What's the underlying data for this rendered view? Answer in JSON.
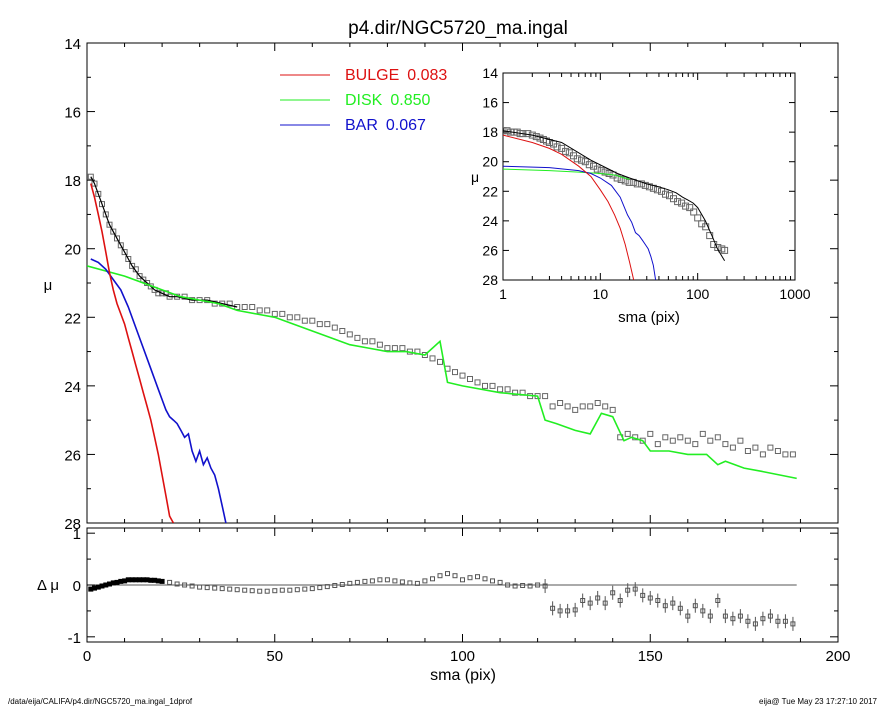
{
  "title": "p4.dir/NGC5720_ma.ingal",
  "footer": {
    "left": "/data/eija/CALIFA/p4.dir/NGC5720_ma.ingal_1dprof",
    "right": "eija@  Tue May 23 17:27:10 2017"
  },
  "colors": {
    "bulge": "#dd1111",
    "disk": "#22ee22",
    "bar": "#1111cc",
    "data": "#666666",
    "model": "#000000"
  },
  "chart_data": [
    {
      "type": "line",
      "panel": "main",
      "xlabel": "sma (pix)",
      "ylabel": "μ",
      "xlim": [
        0,
        200
      ],
      "ylim": [
        28,
        14
      ],
      "yticks": [
        "14",
        "16",
        "18",
        "20",
        "22",
        "24",
        "26",
        "28"
      ],
      "legend": [
        {
          "name": "BULGE",
          "value": "0.083",
          "color": "#dd1111"
        },
        {
          "name": "DISK",
          "value": "0.850",
          "color": "#22ee22"
        },
        {
          "name": "BAR",
          "value": "0.067",
          "color": "#1111cc"
        }
      ],
      "series": [
        {
          "name": "BULGE",
          "color": "#dd1111",
          "x": [
            1,
            2,
            3,
            4,
            5,
            6,
            7,
            8,
            9,
            10,
            11,
            12,
            13,
            14,
            15,
            16,
            17,
            18,
            19,
            20,
            21,
            22,
            23
          ],
          "y": [
            18.1,
            18.5,
            19.0,
            19.5,
            20.1,
            20.7,
            21.2,
            21.6,
            21.9,
            22.2,
            22.6,
            23.0,
            23.4,
            23.8,
            24.2,
            24.6,
            25.0,
            25.5,
            26.0,
            26.6,
            27.2,
            27.8,
            28.0
          ]
        },
        {
          "name": "DISK",
          "color": "#22ee22",
          "x": [
            0,
            10,
            20,
            25,
            30,
            35,
            40,
            45,
            50,
            55,
            60,
            65,
            70,
            75,
            80,
            85,
            90,
            94,
            96,
            100,
            110,
            120,
            122,
            125,
            130,
            134,
            137,
            140,
            143,
            145,
            148,
            150,
            155,
            160,
            165,
            168,
            170,
            175,
            180,
            189
          ],
          "y": [
            20.5,
            20.8,
            21.2,
            21.4,
            21.5,
            21.6,
            21.8,
            21.9,
            22.0,
            22.2,
            22.4,
            22.6,
            22.8,
            22.9,
            23.0,
            23.0,
            23.1,
            22.7,
            23.9,
            24.0,
            24.2,
            24.3,
            25.0,
            25.1,
            25.3,
            25.4,
            24.8,
            24.9,
            25.6,
            25.5,
            25.6,
            25.9,
            25.9,
            26.0,
            26.0,
            26.3,
            26.2,
            26.4,
            26.5,
            26.7
          ]
        },
        {
          "name": "BAR",
          "color": "#1111cc",
          "x": [
            1,
            3,
            5,
            7,
            9,
            11,
            13,
            15,
            17,
            19,
            20,
            21,
            22,
            23,
            24,
            25,
            26,
            27,
            28,
            29,
            30,
            31,
            32,
            33,
            34,
            35,
            36,
            37
          ],
          "y": [
            20.3,
            20.4,
            20.6,
            20.9,
            21.2,
            21.7,
            22.3,
            22.9,
            23.5,
            24.1,
            24.4,
            24.7,
            24.9,
            25.0,
            25.1,
            25.3,
            25.5,
            25.4,
            25.9,
            26.2,
            25.9,
            26.3,
            26.1,
            26.4,
            26.6,
            27.0,
            27.5,
            28.0
          ]
        },
        {
          "name": "",
          "color": "#666666",
          "style": "markers",
          "x": [
            1,
            2,
            3,
            4,
            5,
            6,
            7,
            8,
            9,
            10,
            11,
            12,
            13,
            14,
            15,
            16,
            17,
            18,
            19,
            20,
            21,
            22,
            24,
            26,
            28,
            30,
            32,
            34,
            36,
            38,
            40,
            42,
            44,
            46,
            48,
            50,
            52,
            54,
            56,
            58,
            60,
            62,
            64,
            66,
            68,
            70,
            72,
            74,
            76,
            78,
            80,
            82,
            84,
            86,
            88,
            90,
            92,
            94,
            96,
            98,
            100,
            102,
            104,
            106,
            108,
            110,
            112,
            114,
            116,
            118,
            120,
            122,
            124,
            126,
            128,
            130,
            132,
            134,
            136,
            138,
            140,
            142,
            144,
            146,
            148,
            150,
            152,
            154,
            156,
            158,
            160,
            162,
            164,
            166,
            168,
            170,
            172,
            174,
            176,
            178,
            180,
            182,
            184,
            186,
            188
          ],
          "y": [
            17.9,
            18.1,
            18.4,
            18.7,
            19.0,
            19.3,
            19.5,
            19.7,
            19.9,
            20.1,
            20.3,
            20.5,
            20.6,
            20.8,
            20.9,
            21.0,
            21.1,
            21.2,
            21.3,
            21.3,
            21.3,
            21.4,
            21.4,
            21.4,
            21.5,
            21.5,
            21.5,
            21.6,
            21.6,
            21.6,
            21.7,
            21.7,
            21.7,
            21.8,
            21.8,
            21.9,
            21.9,
            22.0,
            22.0,
            22.1,
            22.1,
            22.2,
            22.2,
            22.3,
            22.4,
            22.5,
            22.6,
            22.7,
            22.7,
            22.8,
            22.9,
            22.9,
            22.9,
            23.0,
            23.0,
            23.1,
            23.2,
            23.3,
            23.5,
            23.6,
            23.7,
            23.8,
            23.9,
            24.0,
            24.0,
            24.1,
            24.1,
            24.2,
            24.2,
            24.3,
            24.3,
            24.3,
            24.6,
            24.5,
            24.6,
            24.7,
            24.6,
            24.6,
            24.5,
            24.6,
            24.7,
            25.5,
            25.4,
            25.5,
            25.6,
            25.4,
            25.7,
            25.5,
            25.6,
            25.5,
            25.6,
            25.7,
            25.4,
            25.6,
            25.5,
            25.7,
            25.8,
            25.6,
            25.9,
            25.8,
            26.0,
            25.8,
            25.9,
            26.0,
            26.0
          ]
        },
        {
          "name": "",
          "color": "#000000",
          "x": [
            1,
            2,
            3,
            4,
            6,
            8,
            10,
            12,
            14,
            16,
            18,
            20,
            22,
            24,
            28,
            32,
            36,
            40
          ],
          "y": [
            17.9,
            18.1,
            18.4,
            18.7,
            19.3,
            19.7,
            20.1,
            20.5,
            20.8,
            21.0,
            21.2,
            21.3,
            21.4,
            21.4,
            21.5,
            21.5,
            21.6,
            21.7
          ]
        }
      ]
    },
    {
      "type": "line",
      "panel": "inset",
      "xlabel": "sma (pix)",
      "ylabel": "μ",
      "xscale": "log",
      "xlim": [
        1,
        1000
      ],
      "ylim": [
        28,
        14
      ],
      "xticks": [
        "1",
        "10",
        "100",
        "1000"
      ],
      "yticks": [
        "14",
        "16",
        "18",
        "20",
        "22",
        "24",
        "26",
        "28"
      ],
      "series": [
        {
          "name": "BULGE",
          "color": "#dd1111",
          "x": [
            1,
            2,
            3,
            4,
            6,
            8,
            10,
            12,
            14,
            16,
            18,
            20,
            22
          ],
          "y": [
            18.2,
            18.7,
            19.1,
            19.5,
            20.3,
            21.0,
            21.9,
            22.7,
            23.6,
            24.5,
            25.6,
            26.8,
            28.0
          ]
        },
        {
          "name": "DISK",
          "color": "#22ee22",
          "x": [
            1,
            3,
            6,
            10,
            14,
            20
          ],
          "y": [
            20.5,
            20.6,
            20.7,
            20.8,
            20.9,
            21.2
          ]
        },
        {
          "name": "BAR",
          "color": "#1111cc",
          "x": [
            1,
            3,
            6,
            8,
            10,
            13,
            16,
            19,
            21,
            23,
            25,
            27,
            29,
            31,
            33,
            35,
            37
          ],
          "y": [
            20.3,
            20.4,
            20.6,
            20.8,
            21.1,
            21.6,
            22.4,
            23.6,
            24.1,
            24.8,
            25.0,
            25.3,
            25.6,
            25.9,
            26.4,
            27.0,
            28.0
          ]
        },
        {
          "name": "",
          "color": "#666666",
          "style": "markers",
          "x": [
            1.0,
            1.1,
            1.2,
            1.3,
            1.4,
            1.5,
            1.6,
            1.8,
            2.0,
            2.2,
            2.4,
            2.6,
            2.8,
            3.0,
            3.3,
            3.6,
            4.0,
            4.4,
            4.8,
            5.3,
            5.8,
            6.4,
            7.0,
            7.7,
            8.5,
            9.3,
            10.2,
            11.2,
            12.3,
            13.5,
            14.9,
            16.4,
            18.0,
            19.8,
            21.8,
            24.0,
            26.4,
            29.0,
            31.9,
            35.1,
            38.6,
            42.5,
            46.7,
            51.4,
            56.5,
            62.2,
            68.4,
            75.2,
            82.8,
            91.0,
            100,
            110,
            121,
            133,
            146,
            161,
            177,
            189
          ],
          "y": [
            17.9,
            17.9,
            18.0,
            18.0,
            18.0,
            18.1,
            18.1,
            18.1,
            18.2,
            18.3,
            18.4,
            18.5,
            18.6,
            18.7,
            18.8,
            19.0,
            19.1,
            19.3,
            19.4,
            19.6,
            19.8,
            19.9,
            20.0,
            20.2,
            20.3,
            20.5,
            20.6,
            20.7,
            20.8,
            20.9,
            21.1,
            21.2,
            21.3,
            21.4,
            21.4,
            21.5,
            21.5,
            21.6,
            21.7,
            21.8,
            21.9,
            22.0,
            22.2,
            22.3,
            22.5,
            22.7,
            22.8,
            23.0,
            23.1,
            23.4,
            23.8,
            24.2,
            24.4,
            25.0,
            25.6,
            25.8,
            25.9,
            26.0
          ]
        },
        {
          "name": "",
          "color": "#000000",
          "x": [
            1,
            2,
            4,
            8,
            15,
            20,
            30,
            40,
            50,
            60,
            70,
            80,
            90,
            100,
            120,
            140,
            160,
            189
          ],
          "y": [
            17.9,
            18.2,
            18.7,
            19.9,
            20.8,
            21.1,
            21.5,
            21.7,
            21.9,
            22.1,
            22.4,
            22.6,
            22.8,
            23.1,
            24.0,
            25.0,
            25.9,
            26.7
          ]
        }
      ]
    },
    {
      "type": "scatter",
      "panel": "residual",
      "xlabel": "sma (pix)",
      "ylabel": "Δ μ",
      "xlim": [
        0,
        200
      ],
      "ylim": [
        -1.1,
        1.1
      ],
      "xticks": [
        "0",
        "50",
        "100",
        "150",
        "200"
      ],
      "yticks": [
        "1",
        "0",
        "-1"
      ],
      "series": [
        {
          "name": "",
          "color": "#000000",
          "x": [
            1,
            2,
            3,
            4,
            5,
            6,
            7,
            8,
            9,
            10,
            11,
            12,
            13,
            14,
            15,
            16,
            17,
            18,
            19,
            20,
            22,
            24,
            26,
            28,
            30,
            32,
            34,
            36,
            38,
            40,
            42,
            44,
            46,
            48,
            50,
            52,
            54,
            56,
            58,
            60,
            62,
            64,
            66,
            68,
            70,
            72,
            74,
            76,
            78,
            80,
            82,
            84,
            86,
            88,
            90,
            92,
            94,
            96,
            98,
            100,
            102,
            104,
            106,
            108,
            110,
            112,
            114,
            116,
            118,
            120,
            122,
            124,
            126,
            128,
            130,
            132,
            134,
            136,
            138,
            140,
            142,
            144,
            146,
            148,
            150,
            152,
            154,
            156,
            158,
            160,
            162,
            164,
            166,
            168,
            170,
            172,
            174,
            176,
            178,
            180,
            182,
            184,
            186,
            188
          ],
          "y": [
            -0.08,
            -0.06,
            -0.04,
            -0.02,
            0.0,
            0.02,
            0.04,
            0.05,
            0.07,
            0.08,
            0.1,
            0.1,
            0.1,
            0.1,
            0.1,
            0.1,
            0.09,
            0.09,
            0.08,
            0.07,
            0.05,
            0.02,
            0.0,
            -0.02,
            -0.04,
            -0.05,
            -0.06,
            -0.07,
            -0.08,
            -0.09,
            -0.1,
            -0.11,
            -0.12,
            -0.12,
            -0.11,
            -0.1,
            -0.1,
            -0.09,
            -0.08,
            -0.07,
            -0.05,
            -0.03,
            -0.01,
            0.01,
            0.03,
            0.05,
            0.07,
            0.08,
            0.1,
            0.1,
            0.08,
            0.06,
            0.04,
            0.03,
            0.08,
            0.12,
            0.18,
            0.22,
            0.18,
            0.1,
            0.14,
            0.16,
            0.12,
            0.08,
            0.05,
            0.0,
            -0.02,
            -0.01,
            -0.02,
            0.0,
            -0.02,
            -0.45,
            -0.5,
            -0.5,
            -0.48,
            -0.3,
            -0.35,
            -0.25,
            -0.35,
            -0.15,
            -0.3,
            -0.1,
            -0.08,
            -0.2,
            -0.25,
            -0.3,
            -0.4,
            -0.35,
            -0.45,
            -0.6,
            -0.4,
            -0.5,
            -0.6,
            -0.3,
            -0.6,
            -0.65,
            -0.6,
            -0.7,
            -0.75,
            -0.65,
            -0.6,
            -0.7,
            -0.7,
            -0.75
          ]
        }
      ]
    }
  ]
}
